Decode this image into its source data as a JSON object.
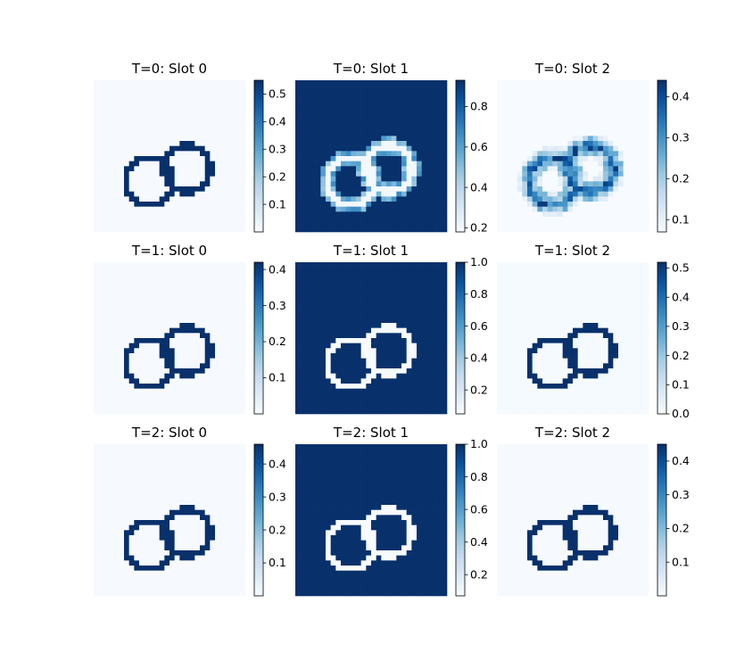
{
  "chart_data": {
    "type": "heatmap",
    "colormap": "Blues",
    "colormap_stops": [
      "#f7fbff",
      "#deebf7",
      "#c6dbef",
      "#9ecae1",
      "#6baed6",
      "#4292c6",
      "#2171b5",
      "#08519c",
      "#08306b"
    ],
    "grid_size": 30,
    "ring_a": {
      "cx": 11,
      "cy": 20,
      "r": 4.55
    },
    "ring_b": {
      "cx": 18.5,
      "cy": 17.5,
      "r": 4.55
    },
    "panels": [
      {
        "title": "T=0: Slot 0",
        "mode": "rings_dark",
        "vmin": 0.0,
        "vmax": 0.55,
        "ring_value": 0.55,
        "background_value": 0.003,
        "ticks": [
          "0.1",
          "0.2",
          "0.3",
          "0.4",
          "0.5"
        ],
        "tick_values": [
          0.1,
          0.2,
          0.3,
          0.4,
          0.5
        ]
      },
      {
        "title": "T=0: Slot 1",
        "mode": "rings_light_blurry",
        "vmin": 0.18,
        "vmax": 0.93,
        "ring_value": 0.2,
        "background_value": 0.93,
        "ticks": [
          "0.2",
          "0.4",
          "0.6",
          "0.8"
        ],
        "tick_values": [
          0.2,
          0.4,
          0.6,
          0.8
        ]
      },
      {
        "title": "T=0: Slot 2",
        "mode": "rings_blurry_dark",
        "vmin": 0.07,
        "vmax": 0.44,
        "ring_value": 0.3,
        "background_value": 0.07,
        "ticks": [
          "0.1",
          "0.2",
          "0.3",
          "0.4"
        ],
        "tick_values": [
          0.1,
          0.2,
          0.3,
          0.4
        ]
      },
      {
        "title": "T=1: Slot 0",
        "mode": "rings_dark",
        "vmin": 0.0,
        "vmax": 0.42,
        "ring_value": 0.42,
        "background_value": 0.003,
        "ticks": [
          "0.1",
          "0.2",
          "0.3",
          "0.4"
        ],
        "tick_values": [
          0.1,
          0.2,
          0.3,
          0.4
        ]
      },
      {
        "title": "T=1: Slot 1",
        "mode": "rings_light",
        "vmin": 0.05,
        "vmax": 1.0,
        "ring_value": 0.05,
        "background_value": 1.0,
        "ticks": [
          "0.2",
          "0.4",
          "0.6",
          "0.8",
          "1.0"
        ],
        "tick_values": [
          0.2,
          0.4,
          0.6,
          0.8,
          1.0
        ]
      },
      {
        "title": "T=1: Slot 2",
        "mode": "rings_dark",
        "vmin": 0.0,
        "vmax": 0.52,
        "ring_value": 0.52,
        "background_value": 0.005,
        "ticks": [
          "0.0",
          "0.1",
          "0.2",
          "0.3",
          "0.4",
          "0.5"
        ],
        "tick_values": [
          0.0,
          0.1,
          0.2,
          0.3,
          0.4,
          0.5
        ]
      },
      {
        "title": "T=2: Slot 0",
        "mode": "rings_dark",
        "vmin": 0.0,
        "vmax": 0.46,
        "ring_value": 0.46,
        "background_value": 0.003,
        "ticks": [
          "0.1",
          "0.2",
          "0.3",
          "0.4"
        ],
        "tick_values": [
          0.1,
          0.2,
          0.3,
          0.4
        ]
      },
      {
        "title": "T=2: Slot 1",
        "mode": "rings_light",
        "vmin": 0.07,
        "vmax": 1.0,
        "ring_value": 0.07,
        "background_value": 1.0,
        "ticks": [
          "0.2",
          "0.4",
          "0.6",
          "0.8",
          "1.0"
        ],
        "tick_values": [
          0.2,
          0.4,
          0.6,
          0.8,
          1.0
        ]
      },
      {
        "title": "T=2: Slot 2",
        "mode": "rings_dark",
        "vmin": 0.0,
        "vmax": 0.45,
        "ring_value": 0.45,
        "background_value": 0.003,
        "ticks": [
          "0.1",
          "0.2",
          "0.3",
          "0.4"
        ],
        "tick_values": [
          0.1,
          0.2,
          0.3,
          0.4
        ]
      }
    ]
  }
}
